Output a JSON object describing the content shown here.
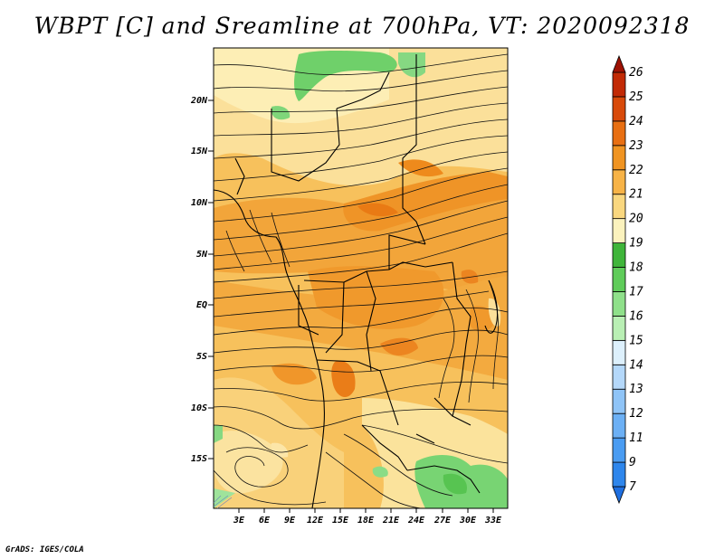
{
  "title": "WBPT [C] and Sreamline at 700hPa, VT: 2020092318",
  "footer": "GrADS: IGES/COLA",
  "map": {
    "lat_ticks": [
      "20N",
      "15N",
      "10N",
      "5N",
      "EQ",
      "5S",
      "10S",
      "15S"
    ],
    "lon_ticks": [
      "3E",
      "6E",
      "9E",
      "12E",
      "15E",
      "18E",
      "21E",
      "24E",
      "27E",
      "30E",
      "33E"
    ]
  },
  "colorbar": {
    "labels": [
      "7",
      "9",
      "11",
      "12",
      "13",
      "14",
      "15",
      "16",
      "17",
      "18",
      "19",
      "20",
      "21",
      "22",
      "23",
      "24",
      "25",
      "26"
    ],
    "colors": [
      "#1f6fe0",
      "#2e86ec",
      "#4a9cf2",
      "#6cb0f5",
      "#8fc4f7",
      "#b4d8fa",
      "#ddf0fc",
      "#b9efb4",
      "#8fe08a",
      "#5fcc5a",
      "#3fb53a",
      "#fbf2bd",
      "#f9d77f",
      "#f7b347",
      "#f09422",
      "#e86f12",
      "#d84a0a",
      "#c22a05",
      "#9e1203"
    ]
  }
}
